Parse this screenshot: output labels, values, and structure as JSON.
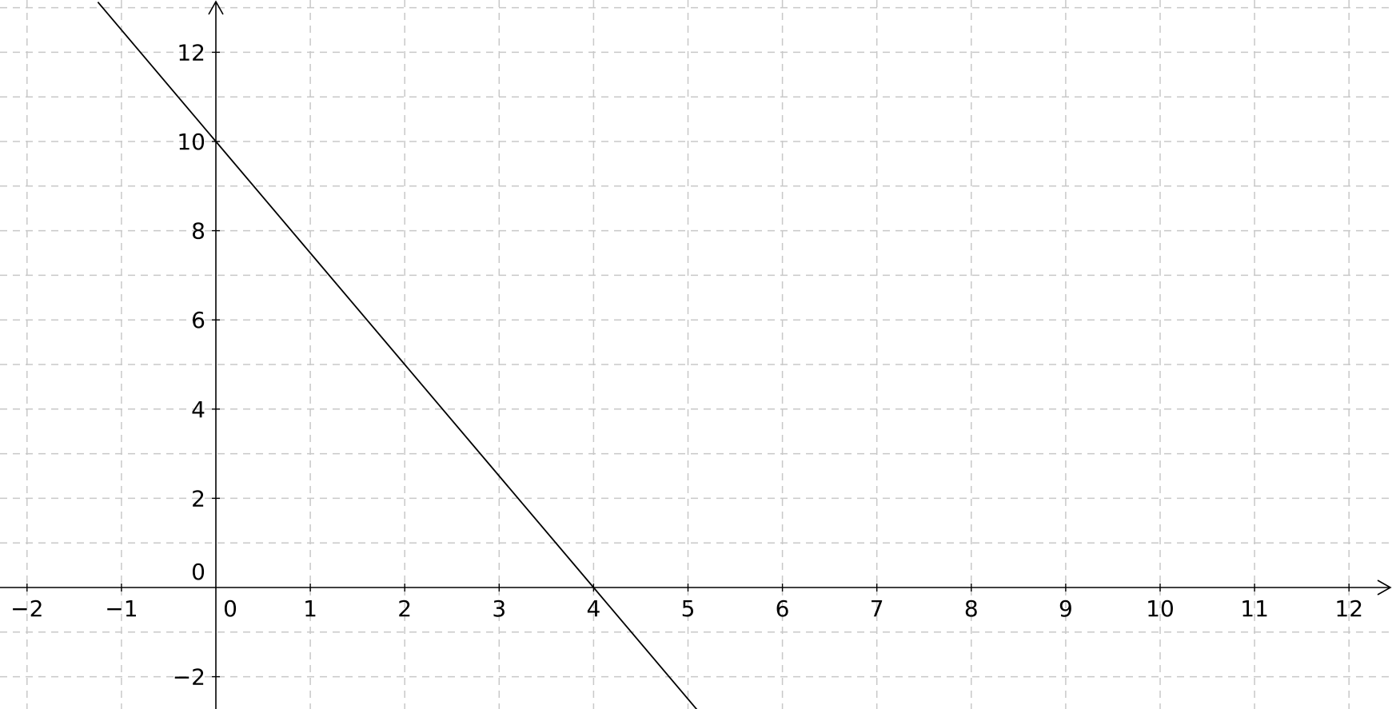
{
  "chart_data": {
    "type": "line",
    "title": "",
    "xlabel": "",
    "ylabel": "",
    "xlim": [
      -2.3,
      12.5
    ],
    "ylim": [
      -2.8,
      13.1
    ],
    "grid": true,
    "x_ticks": [
      -2,
      -1,
      0,
      1,
      2,
      3,
      4,
      5,
      6,
      7,
      8,
      9,
      10,
      11,
      12
    ],
    "x_tick_labels": [
      "−2",
      "−1",
      "0",
      "1",
      "2",
      "3",
      "4",
      "5",
      "6",
      "7",
      "8",
      "9",
      "10",
      "11",
      "12"
    ],
    "y_ticks": [
      -2,
      0,
      2,
      4,
      6,
      8,
      10,
      12
    ],
    "y_tick_labels": [
      "−2",
      "0",
      "2",
      "4",
      "6",
      "8",
      "10",
      "12"
    ],
    "series": [
      {
        "x": [
          -1.25,
          0,
          1,
          2,
          3,
          4,
          5.1
        ],
        "y": [
          13.125,
          10,
          7.5,
          5,
          2.5,
          0,
          -2.75
        ]
      }
    ]
  }
}
